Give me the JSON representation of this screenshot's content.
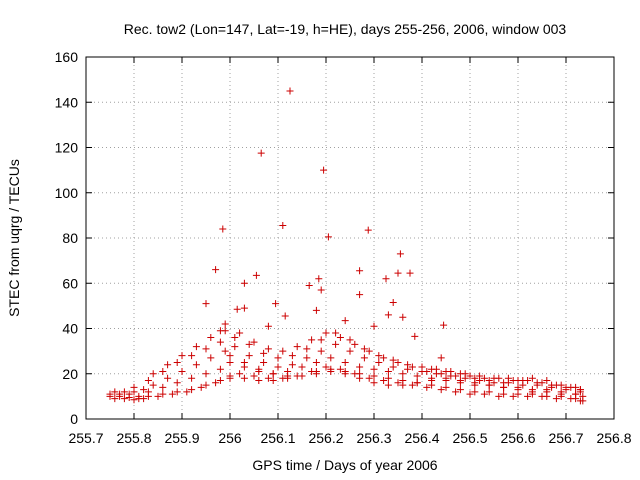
{
  "chart_data": {
    "type": "scatter",
    "title": "Rec. tow2 (Lon=147, Lat=-19, h=HE), days 255-256, 2006, window 003",
    "xlabel": "GPS time / Days of year 2006",
    "ylabel": "STEC from uqrg / TECUs",
    "xlim": [
      255.7,
      256.8
    ],
    "ylim": [
      0,
      160
    ],
    "x_ticks": [
      "255.7",
      "255.8",
      "255.9",
      "256",
      "256.1",
      "256.2",
      "256.3",
      "256.4",
      "256.5",
      "256.6",
      "256.7",
      "256.8"
    ],
    "y_ticks": [
      "0",
      "20",
      "40",
      "60",
      "80",
      "100",
      "120",
      "140",
      "160"
    ],
    "grid": true,
    "color": "#cc0000",
    "marker": "plus",
    "outliers": [
      [
        256.125,
        145
      ],
      [
        256.065,
        117.5
      ],
      [
        256.195,
        110
      ],
      [
        256.288,
        83.5
      ],
      [
        255.985,
        84
      ],
      [
        256.11,
        85.5
      ],
      [
        256.205,
        80.5
      ],
      [
        256.355,
        73
      ],
      [
        255.97,
        66
      ],
      [
        256.055,
        63.5
      ],
      [
        256.27,
        65.5
      ],
      [
        256.325,
        62
      ],
      [
        256.35,
        64.5
      ],
      [
        256.375,
        64.5
      ],
      [
        256.185,
        62
      ],
      [
        256.165,
        59
      ],
      [
        256.03,
        60
      ],
      [
        256.19,
        57
      ],
      [
        256.27,
        55
      ],
      [
        255.95,
        51
      ],
      [
        256.095,
        51
      ],
      [
        256.34,
        51.5
      ],
      [
        256.015,
        48.5
      ],
      [
        256.03,
        49
      ],
      [
        256.18,
        48
      ],
      [
        256.33,
        46
      ],
      [
        256.445,
        41.5
      ],
      [
        256.36,
        45
      ],
      [
        256.24,
        43.5
      ],
      [
        256.115,
        45.5
      ],
      [
        256.08,
        41
      ],
      [
        255.99,
        42
      ],
      [
        256.385,
        36.5
      ],
      [
        256.44,
        27
      ],
      [
        256.3,
        41
      ],
      [
        255.98,
        39
      ]
    ],
    "tracks": [
      {
        "x": [
          255.75,
          255.77,
          255.79,
          255.81,
          255.83,
          255.86,
          255.89,
          255.92,
          255.95,
          255.98,
          256.0,
          256.03,
          256.06,
          256.09,
          256.12,
          256.15,
          256.18,
          256.21,
          256.24,
          256.27,
          256.3,
          256.33,
          256.36,
          256.39,
          256.42,
          256.45,
          256.48,
          256.51,
          256.54,
          256.57,
          256.6,
          256.63,
          256.66,
          256.69,
          256.72,
          256.735
        ],
        "y": [
          10,
          10,
          9.5,
          9,
          10,
          11,
          12,
          13,
          15,
          17,
          19,
          18,
          17,
          17,
          18,
          19,
          21,
          22,
          21,
          20,
          19,
          18,
          17,
          16,
          15,
          14,
          13,
          12,
          12,
          11,
          11,
          11,
          10,
          10,
          9,
          8
        ]
      },
      {
        "x": [
          255.75,
          255.77,
          255.79,
          255.81,
          255.83,
          255.86,
          255.89,
          255.92,
          255.95,
          255.98,
          256.0,
          256.03,
          256.06,
          256.09,
          256.12,
          256.15,
          256.18,
          256.21,
          256.24,
          256.27,
          256.3,
          256.33,
          256.36,
          256.39,
          256.42,
          256.45,
          256.48,
          256.51,
          256.54,
          256.57,
          256.6,
          256.63,
          256.66,
          256.69,
          256.72,
          256.735
        ],
        "y": [
          11,
          11,
          11,
          10,
          12,
          14,
          16,
          18,
          20,
          22,
          25,
          23,
          21,
          20,
          21,
          23,
          25,
          27,
          25,
          23,
          22,
          21,
          20,
          19,
          18,
          17,
          16,
          15,
          15,
          14,
          14,
          13,
          13,
          12,
          11,
          10
        ]
      },
      {
        "x": [
          255.76,
          255.78,
          255.8,
          255.82,
          255.84,
          255.87,
          255.9,
          255.93,
          255.96,
          255.99,
          256.01,
          256.04,
          256.07,
          256.1,
          256.13,
          256.16,
          256.19,
          256.22,
          256.25,
          256.28,
          256.31,
          256.34,
          256.37,
          256.4,
          256.43,
          256.46,
          256.49,
          256.52,
          256.55,
          256.58,
          256.61,
          256.64,
          256.67,
          256.7,
          256.73
        ],
        "y": [
          12,
          12,
          12,
          13,
          15,
          18,
          21,
          24,
          27,
          30,
          32,
          28,
          25,
          23,
          24,
          27,
          30,
          33,
          30,
          27,
          25,
          23,
          22,
          21,
          20,
          19,
          18,
          17,
          16,
          16,
          15,
          15,
          14,
          13,
          12
        ]
      },
      {
        "x": [
          255.8,
          255.83,
          255.86,
          255.89,
          255.92,
          255.95,
          255.98,
          256.01,
          256.04,
          256.07,
          256.1,
          256.13,
          256.16,
          256.19,
          256.22,
          256.25,
          256.28,
          256.31,
          256.34,
          256.37,
          256.4,
          256.43,
          256.46,
          256.49,
          256.52,
          256.55,
          256.58,
          256.61,
          256.64,
          256.67,
          256.7,
          256.73
        ],
        "y": [
          14,
          17,
          21,
          25,
          28,
          31,
          34,
          36,
          33,
          29,
          27,
          28,
          31,
          35,
          38,
          35,
          31,
          28,
          26,
          24,
          23,
          22,
          21,
          20,
          19,
          18,
          18,
          17,
          16,
          15,
          14,
          13
        ]
      },
      {
        "x": [
          255.84,
          255.87,
          255.9,
          255.93,
          255.96,
          255.99,
          256.02,
          256.05,
          256.08,
          256.11,
          256.14,
          256.17,
          256.2,
          256.23,
          256.26,
          256.29,
          256.32,
          256.35,
          256.38,
          256.41,
          256.44,
          256.47,
          256.5,
          256.53,
          256.56,
          256.59,
          256.62,
          256.65,
          256.68,
          256.71,
          256.73
        ],
        "y": [
          20,
          24,
          28,
          32,
          36,
          39,
          38,
          34,
          31,
          30,
          32,
          35,
          38,
          36,
          33,
          30,
          27,
          25,
          23,
          21,
          20,
          19,
          19,
          18,
          18,
          17,
          17,
          16,
          15,
          14,
          13
        ]
      },
      {
        "x": [
          255.76,
          255.78,
          255.8,
          255.82,
          255.85,
          255.88,
          255.91,
          255.94,
          255.97,
          256.0,
          256.02,
          256.05,
          256.08,
          256.11,
          256.14,
          256.17,
          256.2,
          256.23,
          256.26,
          256.29,
          256.32,
          256.35,
          256.38,
          256.41,
          256.44,
          256.47,
          256.5,
          256.53,
          256.56,
          256.59,
          256.62,
          256.65,
          256.68,
          256.71,
          256.73
        ],
        "y": [
          9,
          9,
          8.5,
          9,
          10,
          11,
          12,
          14,
          16,
          18,
          20,
          19,
          18,
          18,
          19,
          21,
          23,
          22,
          20,
          18,
          17,
          16,
          15,
          14,
          13,
          12,
          11,
          11,
          10,
          10,
          10,
          10,
          9,
          9,
          8
        ]
      },
      {
        "x": [
          256.0,
          256.03,
          256.06,
          256.09,
          256.12,
          256.15,
          256.18,
          256.21,
          256.24,
          256.27,
          256.3,
          256.33,
          256.36,
          256.39,
          256.42,
          256.45,
          256.48,
          256.51,
          256.54,
          256.57,
          256.6,
          256.63,
          256.66,
          256.69,
          256.72
        ],
        "y": [
          28,
          25,
          22,
          20,
          19,
          19,
          20,
          21,
          20,
          18,
          16,
          15,
          15,
          16,
          17,
          18,
          17,
          16,
          15,
          14,
          13,
          12,
          12,
          11,
          11
        ]
      },
      {
        "x": [
          256.42,
          256.45,
          256.48,
          256.51,
          256.54,
          256.57,
          256.6,
          256.63,
          256.66,
          256.69,
          256.72
        ],
        "y": [
          22,
          21,
          20,
          18,
          17,
          16,
          17,
          18,
          17,
          15,
          14
        ]
      }
    ]
  }
}
